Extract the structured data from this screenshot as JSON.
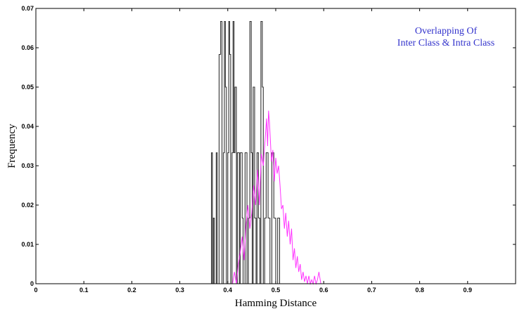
{
  "chart_data": {
    "type": "line",
    "title": "",
    "xlabel": "Hamming Distance",
    "ylabel": "Frequency",
    "xlim": [
      0,
      1
    ],
    "ylim": [
      0,
      0.07
    ],
    "x_ticks": [
      0,
      0.1,
      0.2,
      0.3,
      0.4,
      0.5,
      0.6,
      0.7,
      0.8,
      0.9
    ],
    "x_tick_labels": [
      "0",
      "0.1",
      "0.2",
      "0.3",
      "0.4",
      "0.5",
      "0.6",
      "0.7",
      "0.8",
      "0.9"
    ],
    "y_ticks": [
      0,
      0.01,
      0.02,
      0.03,
      0.04,
      0.05,
      0.06,
      0.07
    ],
    "y_tick_labels": [
      "0",
      "0.01",
      "0.02",
      "0.03",
      "0.04",
      "0.05",
      "0.06",
      "0.07"
    ],
    "grid": false,
    "annotation_lines": [
      "Overlapping Of",
      "Inter Class & Intra Class"
    ],
    "annotation_color": "#3333cc",
    "series": [
      {
        "color": "#333333",
        "x": [
          0,
          0.366,
          0.366,
          0.368,
          0.368,
          0.37,
          0.37,
          0.372,
          0.372,
          0.376,
          0.376,
          0.378,
          0.378,
          0.382,
          0.382,
          0.385,
          0.385,
          0.388,
          0.388,
          0.391,
          0.391,
          0.393,
          0.393,
          0.395,
          0.395,
          0.397,
          0.397,
          0.4,
          0.4,
          0.402,
          0.402,
          0.404,
          0.404,
          0.406,
          0.406,
          0.409,
          0.409,
          0.411,
          0.411,
          0.413,
          0.413,
          0.415,
          0.415,
          0.418,
          0.418,
          0.42,
          0.42,
          0.424,
          0.424,
          0.426,
          0.426,
          0.43,
          0.43,
          0.432,
          0.432,
          0.436,
          0.436,
          0.44,
          0.44,
          0.443,
          0.443,
          0.446,
          0.446,
          0.449,
          0.449,
          0.451,
          0.451,
          0.453,
          0.453,
          0.456,
          0.456,
          0.459,
          0.459,
          0.461,
          0.461,
          0.464,
          0.464,
          0.467,
          0.467,
          0.469,
          0.469,
          0.472,
          0.472,
          0.474,
          0.474,
          0.477,
          0.477,
          0.48,
          0.48,
          0.484,
          0.484,
          0.488,
          0.488,
          0.492,
          0.492,
          0.496,
          0.496,
          0.5,
          0.5,
          0.504,
          0.504,
          0.508,
          0.508,
          1
        ],
        "y": [
          0,
          0,
          0.0333,
          0.0333,
          0,
          0,
          0.0167,
          0.0167,
          0,
          0,
          0.0333,
          0.0333,
          0,
          0,
          0.0583,
          0.0583,
          0.0667,
          0.0667,
          0,
          0,
          0.0333,
          0.0333,
          0.0667,
          0.0667,
          0.05,
          0.05,
          0,
          0,
          0.0333,
          0.0333,
          0.0667,
          0.0667,
          0.0583,
          0.0583,
          0,
          0,
          0.0333,
          0.0333,
          0.0667,
          0.0667,
          0.0333,
          0.0333,
          0.05,
          0.05,
          0,
          0,
          0.0333,
          0.0333,
          0,
          0,
          0.0333,
          0.0333,
          0.0167,
          0.0167,
          0,
          0,
          0.0333,
          0.0333,
          0,
          0,
          0.0167,
          0.0167,
          0.0667,
          0.0667,
          0.0333,
          0.0333,
          0,
          0,
          0.05,
          0.05,
          0.0167,
          0.0167,
          0,
          0,
          0.0333,
          0.0333,
          0.0167,
          0.0167,
          0,
          0,
          0.0667,
          0.0667,
          0.05,
          0.05,
          0,
          0,
          0.0167,
          0.0167,
          0.0333,
          0.0333,
          0.0167,
          0.0167,
          0,
          0,
          0.0333,
          0.0333,
          0.0167,
          0.0167,
          0,
          0,
          0.0167,
          0.0167,
          0,
          0
        ]
      },
      {
        "color": "#ff33ff",
        "x": [
          0,
          0.41,
          0.414,
          0.418,
          0.422,
          0.426,
          0.43,
          0.434,
          0.438,
          0.442,
          0.446,
          0.45,
          0.454,
          0.458,
          0.462,
          0.466,
          0.47,
          0.474,
          0.478,
          0.481,
          0.483,
          0.485,
          0.487,
          0.489,
          0.491,
          0.494,
          0.497,
          0.5,
          0.503,
          0.506,
          0.509,
          0.512,
          0.515,
          0.518,
          0.521,
          0.524,
          0.527,
          0.53,
          0.533,
          0.536,
          0.539,
          0.542,
          0.545,
          0.548,
          0.551,
          0.554,
          0.557,
          0.56,
          0.563,
          0.566,
          0.569,
          0.572,
          0.575,
          0.578,
          0.581,
          0.584,
          0.587,
          0.59,
          0.594,
          1
        ],
        "y": [
          0,
          0,
          0.003,
          0,
          0.005,
          0.008,
          0.012,
          0.006,
          0.015,
          0.02,
          0.014,
          0.018,
          0.025,
          0.02,
          0.029,
          0.02,
          0.033,
          0.03,
          0.037,
          0.042,
          0.035,
          0.044,
          0.041,
          0.036,
          0.031,
          0.034,
          0.026,
          0.032,
          0.028,
          0.03,
          0.025,
          0.019,
          0.02,
          0.014,
          0.018,
          0.012,
          0.016,
          0.01,
          0.014,
          0.006,
          0.009,
          0.004,
          0.007,
          0.003,
          0.005,
          0.001,
          0.003,
          0.0005,
          0.002,
          0,
          0.002,
          0,
          0.001,
          0,
          0.002,
          0,
          0.001,
          0.003,
          0,
          0
        ]
      }
    ]
  }
}
